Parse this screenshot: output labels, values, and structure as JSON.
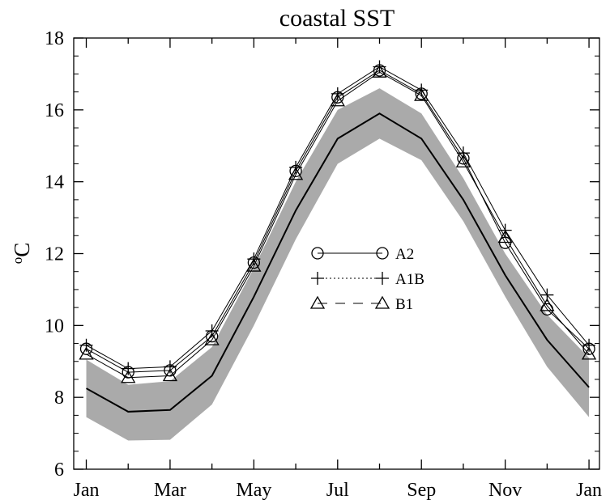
{
  "chart_data": {
    "type": "line",
    "title": "coastal SST",
    "ylabel_base": "C",
    "ylabel_superscript": "o",
    "xlabel": "",
    "ylim": [
      6,
      18
    ],
    "yticks": [
      6,
      8,
      10,
      12,
      14,
      16,
      18
    ],
    "x": [
      1,
      2,
      3,
      4,
      5,
      6,
      7,
      8,
      9,
      10,
      11,
      12,
      13
    ],
    "xtick_positions": [
      1,
      3,
      5,
      7,
      9,
      11,
      13
    ],
    "xtick_labels": [
      "Jan",
      "Mar",
      "May",
      "Jul",
      "Sep",
      "Nov",
      "Jan"
    ],
    "band": {
      "upper": [
        9.05,
        8.35,
        8.45,
        9.4,
        11.6,
        14.0,
        16.0,
        16.6,
        15.9,
        14.1,
        12.0,
        10.3,
        9.1
      ],
      "lower": [
        7.45,
        6.8,
        6.82,
        7.8,
        10.0,
        12.4,
        14.5,
        15.2,
        14.6,
        12.9,
        10.8,
        8.85,
        7.45
      ],
      "color": "#aaaaaa"
    },
    "baseline": {
      "values": [
        8.25,
        7.6,
        7.65,
        8.6,
        10.8,
        13.2,
        15.2,
        15.9,
        15.2,
        13.5,
        11.4,
        9.6,
        8.28
      ],
      "color": "#000000"
    },
    "series": [
      {
        "name": "A2",
        "marker": "circle",
        "dash": "solid",
        "values": [
          9.35,
          8.7,
          8.75,
          9.7,
          11.75,
          14.3,
          16.35,
          17.1,
          16.45,
          14.65,
          12.3,
          10.45,
          9.35
        ]
      },
      {
        "name": "A1B",
        "marker": "plus",
        "dash": "dotted",
        "values": [
          9.45,
          8.8,
          8.85,
          9.85,
          11.85,
          14.4,
          16.45,
          17.2,
          16.55,
          14.8,
          12.65,
          10.85,
          9.45
        ]
      },
      {
        "name": "B1",
        "marker": "triangle",
        "dash": "dashed",
        "values": [
          9.2,
          8.55,
          8.6,
          9.6,
          11.65,
          14.2,
          16.25,
          17.05,
          16.4,
          14.55,
          12.45,
          10.55,
          9.2
        ]
      }
    ],
    "legend": {
      "placement": "center"
    },
    "grid": false
  }
}
